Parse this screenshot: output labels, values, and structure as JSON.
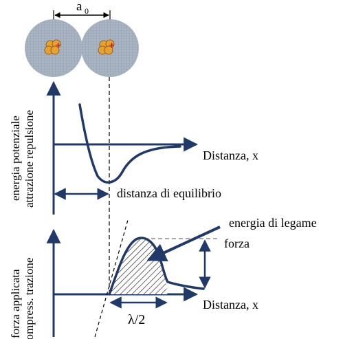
{
  "atom_spacing_label": "a",
  "atom_spacing_subscript": "0",
  "atoms": {
    "charge_symbol": "+"
  },
  "potential_plot": {
    "ylabel_line1": "energia potenziale",
    "ylabel_line2": "attrazione  repulsione",
    "xlabel": "Distanza, x",
    "equilibrium_label": "distanza di equilibrio"
  },
  "force_plot": {
    "ylabel_line1": "forza applicata",
    "ylabel_line2": "compress. trazione",
    "xlabel": "Distanza, x",
    "bond_energy_label": "energia di legame",
    "force_label": "forza",
    "lambda_label": "λ/2"
  },
  "colors": {
    "axis": "#1f3a68",
    "atom_fill": "#a9b4c2",
    "nucleus": "#e6a12e",
    "nucleus_charge": "#b0121b"
  }
}
